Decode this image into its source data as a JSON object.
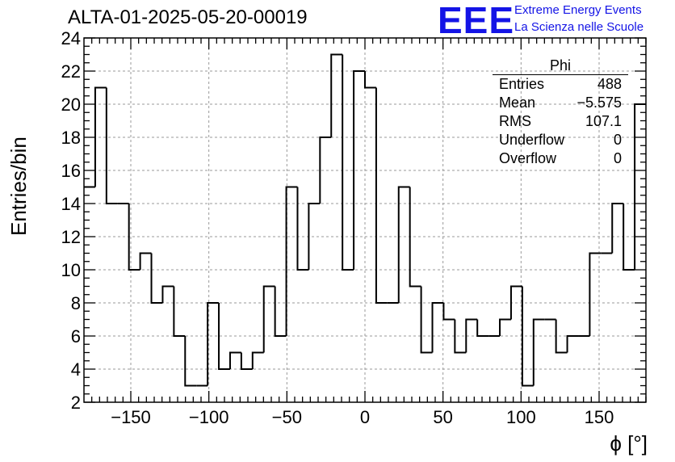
{
  "header": {
    "title": "ALTA-01-2025-05-20-00019"
  },
  "logo": {
    "mark": "EEE",
    "line1": "Extreme Energy Events",
    "line2": "La Scienza nelle Scuole",
    "color": "#1414e6"
  },
  "stats": {
    "name": "Phi",
    "rows": [
      {
        "label": "Entries",
        "value": "488"
      },
      {
        "label": "Mean",
        "value": "−5.575"
      },
      {
        "label": "RMS",
        "value": "107.1"
      },
      {
        "label": "Underflow",
        "value": "0"
      },
      {
        "label": "Overflow",
        "value": "0"
      }
    ]
  },
  "chart_data": {
    "type": "histogram",
    "ylabel": "Entries/bin",
    "xlabel": "ϕ [°]",
    "xlim": [
      -180,
      180
    ],
    "ylim": [
      2,
      24
    ],
    "bin_width": 7.2,
    "xticks": [
      -150,
      -100,
      -50,
      0,
      50,
      100,
      150
    ],
    "yticks": [
      2,
      4,
      6,
      8,
      10,
      12,
      14,
      16,
      18,
      20,
      22,
      24
    ],
    "grid": true,
    "line_color": "#000000",
    "values": [
      15,
      21,
      14,
      14,
      10,
      11,
      8,
      9,
      6,
      3,
      3,
      8,
      4,
      5,
      4,
      5,
      9,
      6,
      15,
      10,
      14,
      18,
      23,
      10,
      22,
      21,
      8,
      8,
      15,
      9,
      5,
      8,
      7,
      5,
      7,
      6,
      6,
      7,
      9,
      3,
      7,
      7,
      5,
      6,
      6,
      11,
      11,
      14,
      10,
      20
    ]
  }
}
